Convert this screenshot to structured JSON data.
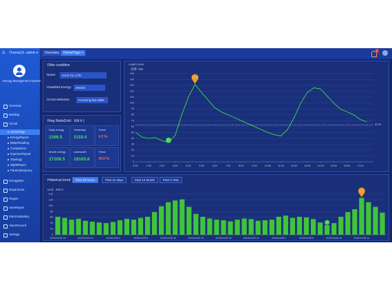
{
  "top_bar": {
    "theme": "Theme(ch",
    "user": "admin ▾",
    "tabs": [
      "Overview",
      "HomePage ×"
    ],
    "badge": "1"
  },
  "sidebar": {
    "system_name": "Energy Management System",
    "menu": [
      "Overview",
      "Building",
      "Circuit"
    ],
    "circuit_items": [
      "HomePage",
      "EnergyReport",
      "MeterReading",
      "Comparison",
      "ExpenseReport",
      "Topology",
      "NightReport",
      "ParameterQuery"
    ],
    "menu2": [
      "Energyitem",
      "Department",
      "Region",
      "UserReport",
      "ElectricalSafety",
      "AlarmRecord",
      "Settings"
    ]
  },
  "filter": {
    "title": "Filter condition",
    "fields": [
      {
        "label": "Name:",
        "value": "Acrel Co.,LTD."
      },
      {
        "label": "Classified Energy:",
        "value": "electric"
      },
      {
        "label": "Circuit Selection:",
        "value": "Incoming line table"
      }
    ]
  },
  "ring_ratio": {
    "title": "Ring Ratio(Unit：kW·h )",
    "cells": [
      {
        "label": "Daily energy",
        "value": "1166.5"
      },
      {
        "label": "Yesterday",
        "value": "1118.4"
      },
      {
        "label": "Trend",
        "value": "4.3 %↑"
      },
      {
        "label": "Month energy",
        "value": "27206.5"
      },
      {
        "label": "Lastmonth",
        "value": "18165.6"
      },
      {
        "label": "Trend",
        "value": "49.8 %↑"
      }
    ]
  },
  "history": {
    "title": "Historical trend",
    "buttons": [
      "Past 48 hours",
      "Past 31 days",
      "Past 12 Month",
      "Past 3 Year"
    ]
  },
  "chart_data": [
    {
      "type": "line",
      "title": "Load curve",
      "y_label": "功率: kW",
      "color": "#3ddc4a",
      "x": [
        0,
        0.5,
        1,
        1.5,
        2,
        2.5,
        3,
        3.5,
        4,
        4.5,
        5,
        5.5,
        6,
        6.5,
        7,
        7.5,
        8,
        8.5,
        9,
        9.5,
        10,
        10.5,
        11,
        11.5,
        12,
        12.5,
        13,
        13.5,
        14,
        14.5,
        15,
        15.5,
        16,
        16.5,
        17,
        17.5
      ],
      "values": [
        50,
        42,
        40,
        41,
        36,
        33.1,
        45,
        80,
        110,
        131.6,
        118,
        105,
        92,
        85,
        80,
        75,
        70,
        65,
        60,
        55,
        50,
        46,
        44,
        55,
        75,
        100,
        118,
        126,
        124,
        112,
        100,
        90,
        85,
        80,
        72,
        68
      ],
      "average": 63.05,
      "xlim": [
        0,
        18
      ],
      "xticks": [
        {
          "value": 0,
          "label": "0:00"
        },
        {
          "value": 1,
          "label": "1:00"
        },
        {
          "value": 2,
          "label": "2:00"
        },
        {
          "value": 3,
          "label": "3:00"
        },
        {
          "value": 4,
          "label": "4:00"
        },
        {
          "value": 5,
          "label": "5:00"
        },
        {
          "value": 6,
          "label": "6:00"
        },
        {
          "value": 7,
          "label": "7:00"
        },
        {
          "value": 8,
          "label": "8:00"
        },
        {
          "value": 9,
          "label": "9:00"
        },
        {
          "value": 10,
          "label": "10:00"
        },
        {
          "value": 11,
          "label": "11:00"
        },
        {
          "value": 12,
          "label": "12:00"
        },
        {
          "value": 13,
          "label": "13:00"
        },
        {
          "value": 14,
          "label": "14:00"
        },
        {
          "value": 15,
          "label": "15:00"
        },
        {
          "value": 16,
          "label": "16:00"
        },
        {
          "value": 17,
          "label": "17:00"
        }
      ],
      "ylim": [
        0,
        150
      ],
      "yticks": [
        0,
        10,
        20,
        30,
        40,
        50,
        60,
        70,
        80,
        90,
        100,
        110,
        120,
        130,
        140,
        150
      ],
      "grid": true
    },
    {
      "type": "bar",
      "y_label": "Unit：kW·h",
      "color": "#3fc43a",
      "categories": [
        "2019/12/24 18",
        null,
        null,
        null,
        "2019/12/24 22",
        null,
        null,
        null,
        "2019/12/25 2",
        null,
        null,
        null,
        "2019/12/25 6",
        null,
        null,
        null,
        "2019/12/25 10",
        null,
        null,
        null,
        "2019/12/25 14",
        null,
        null,
        null,
        "2019/12/25 18",
        null,
        null,
        null,
        "2019/12/25 22",
        null,
        null,
        null,
        "2019/12/26 2",
        null,
        null,
        null,
        "2019/12/26 6",
        null,
        null,
        null,
        "2019/12/26 10",
        null,
        null,
        null,
        "2019/12/26 14",
        null,
        null,
        null
      ],
      "values": [
        62,
        58,
        52,
        55,
        48,
        45,
        42,
        40,
        44,
        50,
        55,
        52,
        58,
        62,
        78,
        98,
        112,
        118,
        122,
        96,
        72,
        62,
        56,
        52,
        50,
        46,
        52,
        56,
        54,
        48,
        50,
        52,
        62,
        66,
        58,
        62,
        60,
        54,
        42,
        33,
        40,
        62,
        78,
        88,
        127,
        112,
        96,
        76
      ],
      "ylim": [
        0,
        140
      ],
      "yticks": [
        0,
        20,
        40,
        60,
        80,
        100,
        120,
        140
      ],
      "grid": true
    }
  ]
}
